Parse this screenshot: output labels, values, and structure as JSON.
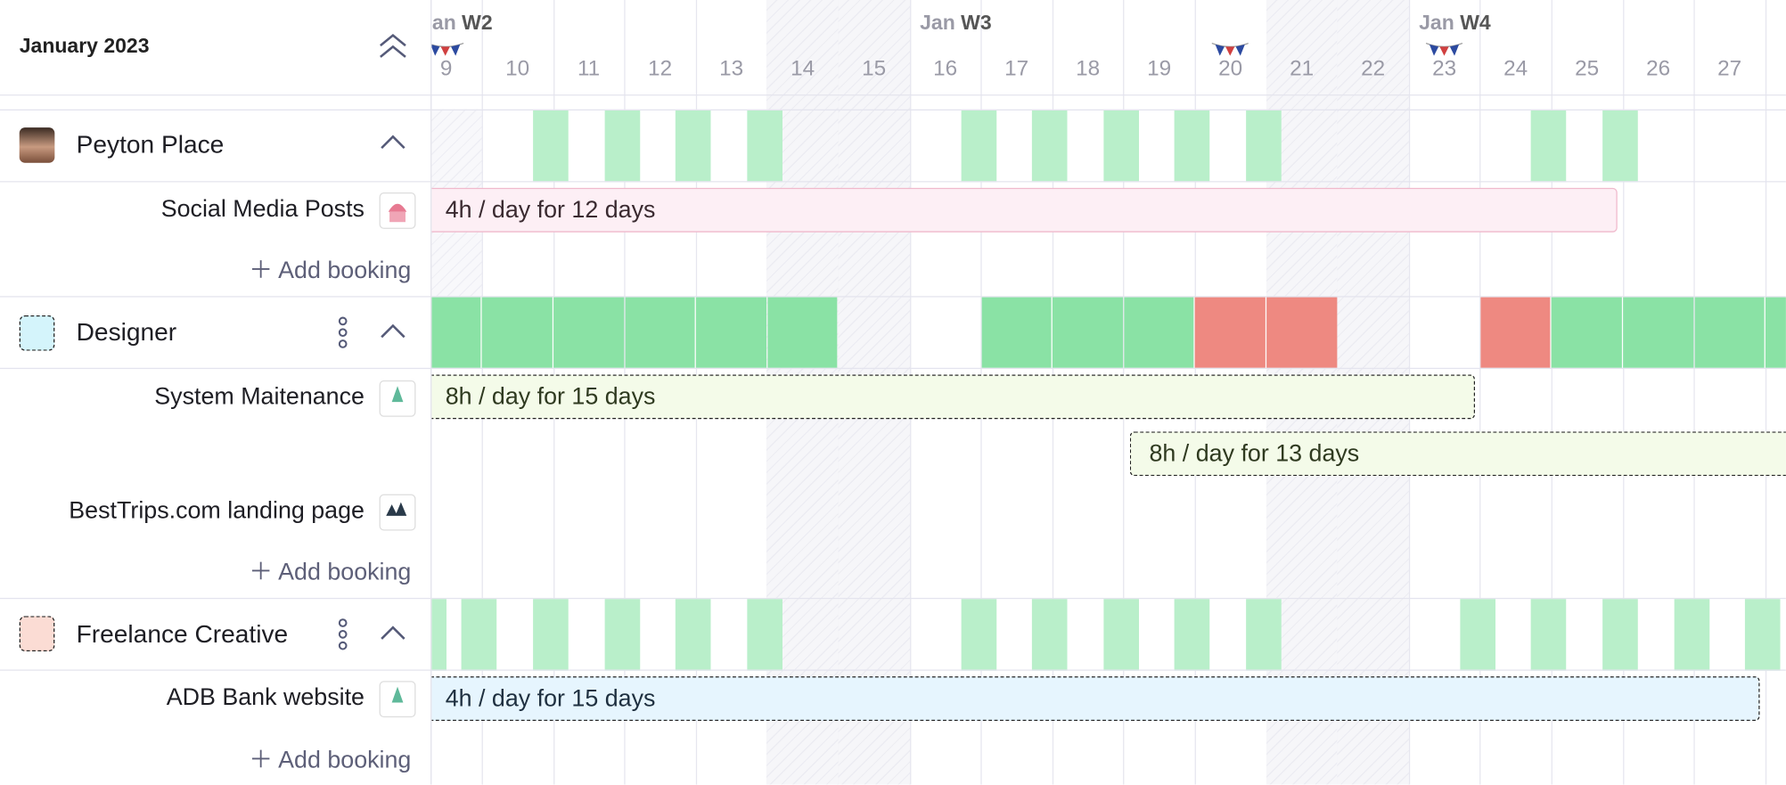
{
  "header": {
    "title": "January 2023"
  },
  "timeline": {
    "weeks": [
      {
        "month": "Jan",
        "week": "W2"
      },
      {
        "month": "Jan",
        "week": "W3"
      },
      {
        "month": "Jan",
        "week": "W4"
      }
    ],
    "days": [
      9,
      10,
      11,
      12,
      13,
      14,
      15,
      16,
      17,
      18,
      19,
      20,
      21,
      22,
      23,
      24,
      25,
      26,
      27
    ]
  },
  "resources": [
    {
      "name": "Peyton Place",
      "tasks": [
        {
          "name": "Social Media Posts",
          "bookings": [
            "4h / day for 12 days"
          ]
        }
      ],
      "add": "Add booking"
    },
    {
      "name": "Designer",
      "tasks": [
        {
          "name": "System Maitenance",
          "bookings": [
            "8h / day for 15 days",
            "8h / day for 13 days"
          ]
        },
        {
          "name": "BestTrips.com landing page"
        }
      ],
      "add": "Add booking"
    },
    {
      "name": "Freelance Creative",
      "tasks": [
        {
          "name": "ADB Bank website",
          "bookings": [
            "4h / day for 15 days"
          ]
        }
      ],
      "add": "Add booking"
    }
  ]
}
